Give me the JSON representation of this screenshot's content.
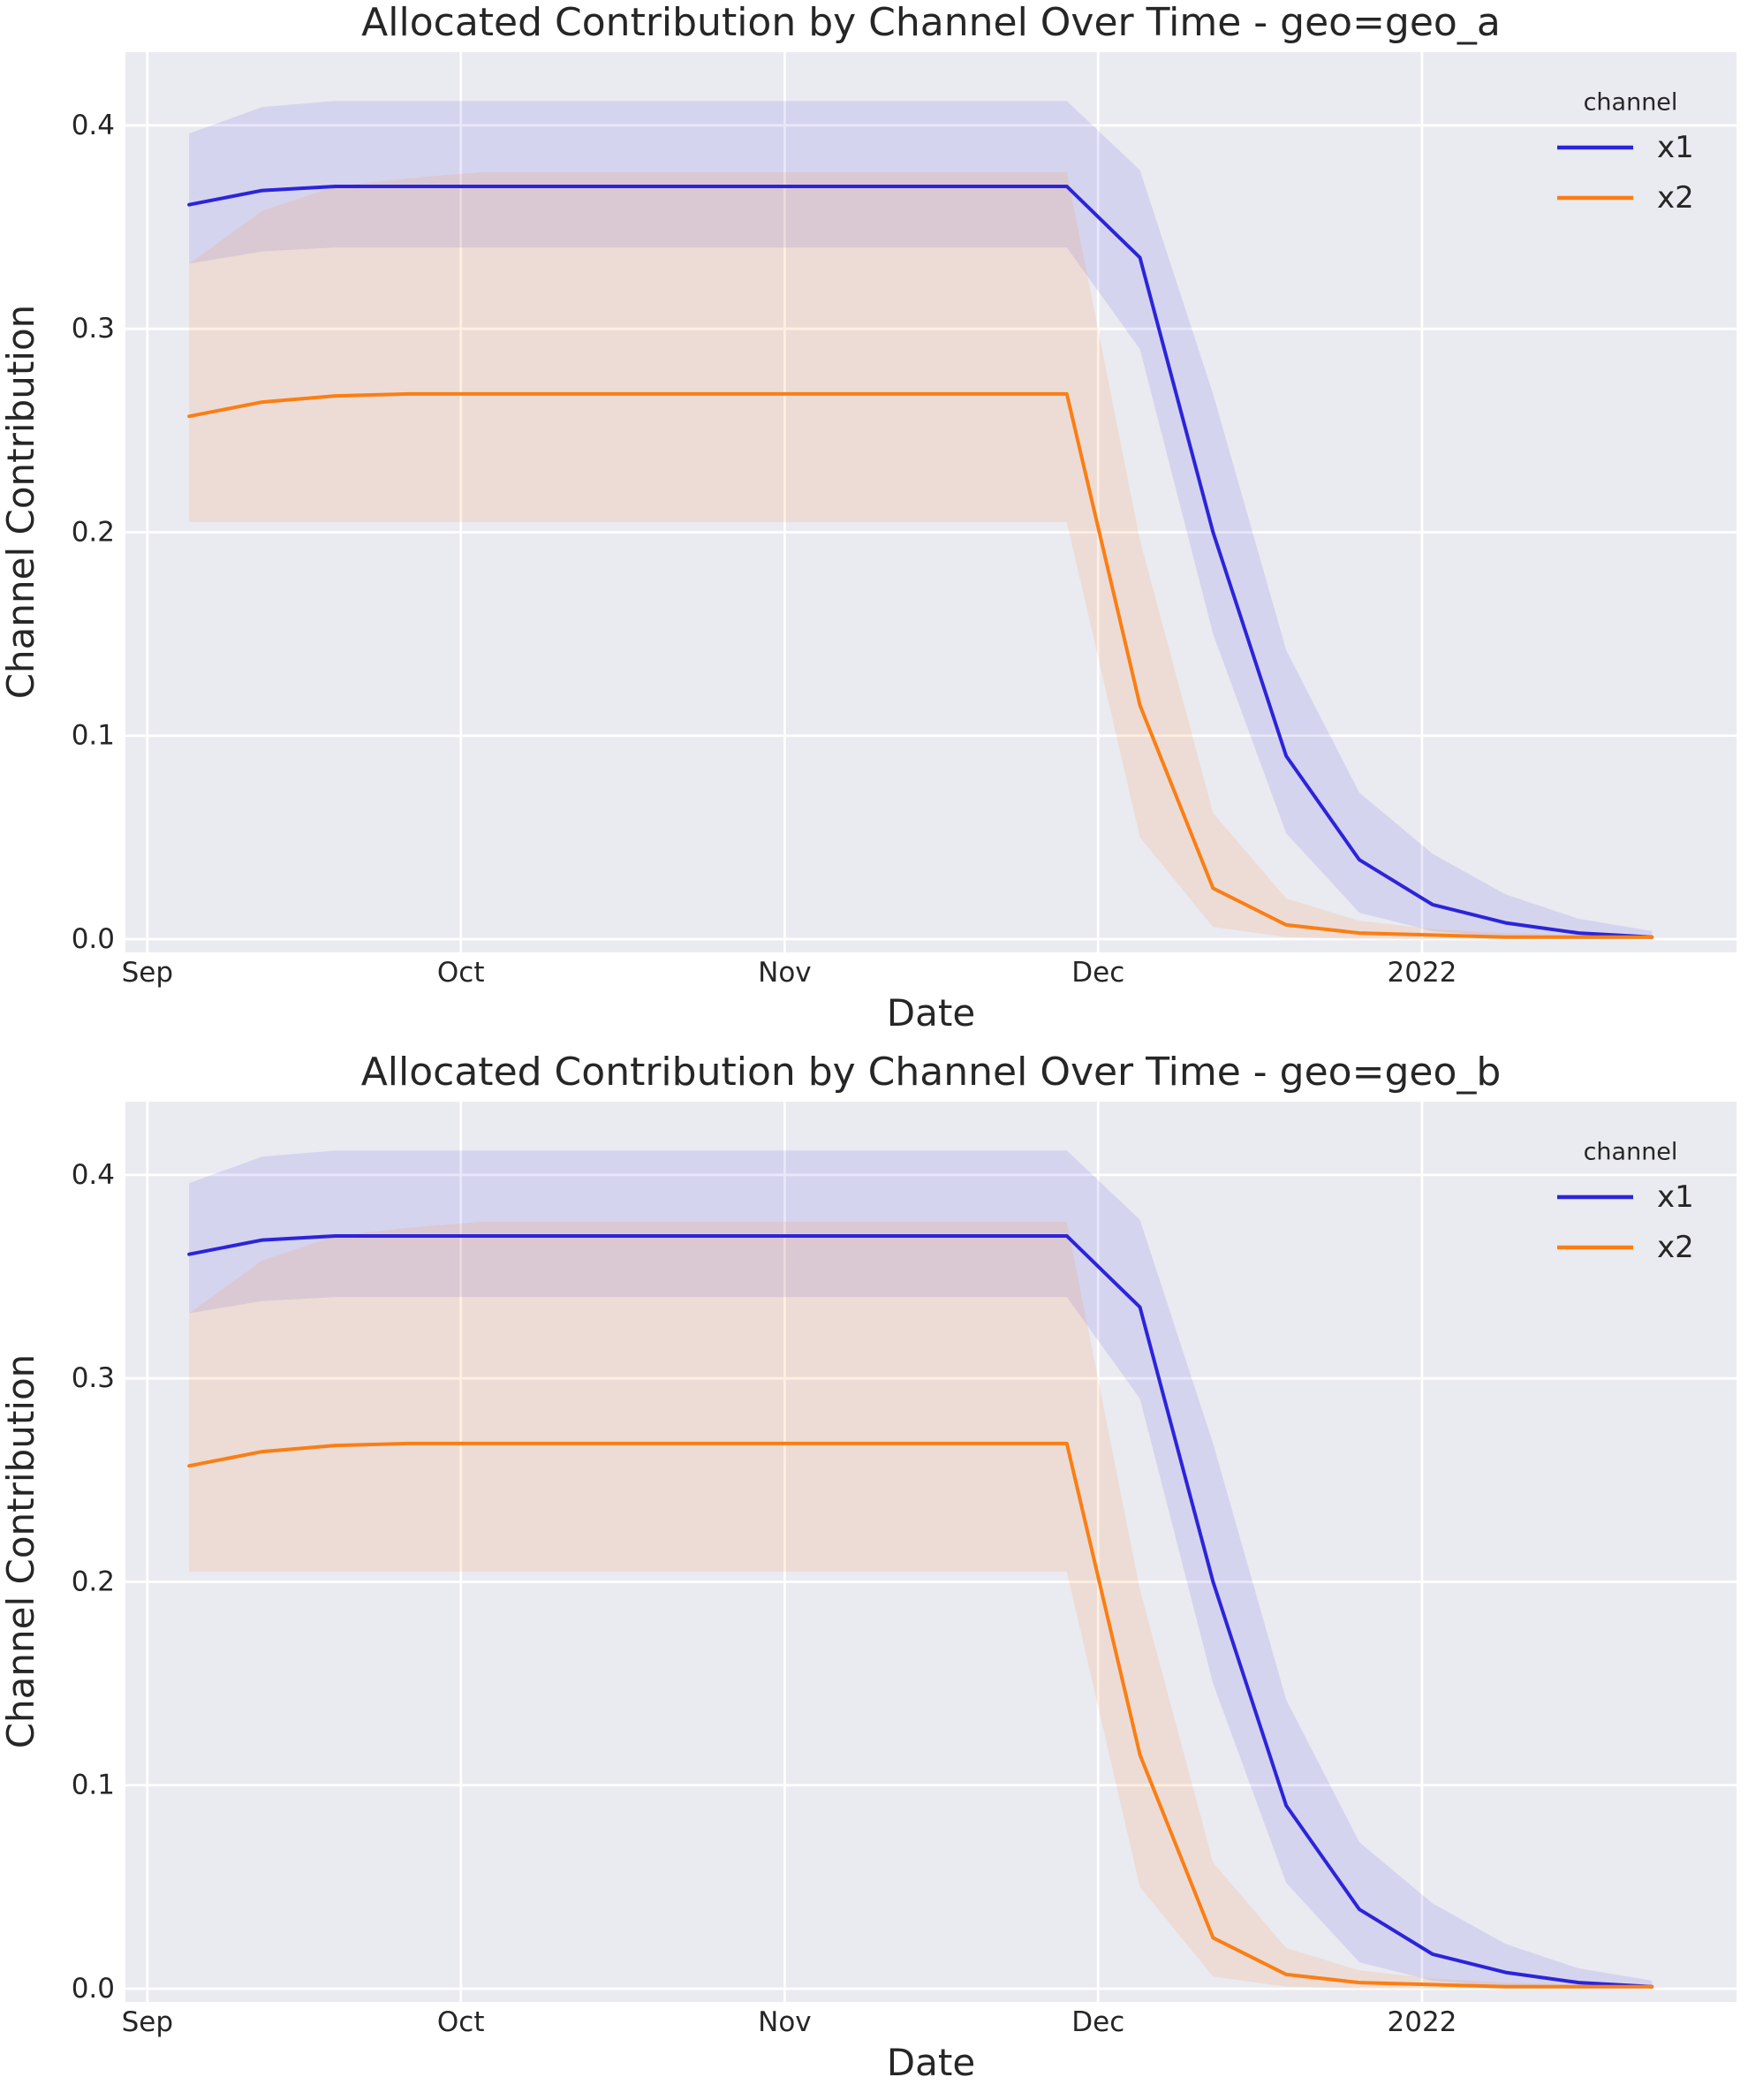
{
  "figure": {
    "background": "#ffffff",
    "plot_background": "#eaeaf1",
    "grid_color": "#ffffff",
    "text_color": "#262626"
  },
  "chart_data": [
    {
      "type": "line",
      "title": "Allocated Contribution by Channel Over Time - geo=geo_a",
      "xlabel": "Date",
      "ylabel": "Channel Contribution",
      "grid": true,
      "legend": {
        "title": "channel",
        "position": "upper right"
      },
      "x_axis_type": "date",
      "x_ticks": [
        {
          "label": "Sep",
          "date": "2021-09-01"
        },
        {
          "label": "Oct",
          "date": "2021-10-01"
        },
        {
          "label": "Nov",
          "date": "2021-11-01"
        },
        {
          "label": "Dec",
          "date": "2021-12-01"
        },
        {
          "label": "2022",
          "date": "2022-01-01"
        }
      ],
      "y_ticks": [
        0.0,
        0.1,
        0.2,
        0.3,
        0.4
      ],
      "y_tick_labels": [
        "0.0",
        "0.1",
        "0.2",
        "0.3",
        "0.4"
      ],
      "xlim_days": [
        -2.1,
        152.1
      ],
      "ylim": [
        -0.0065,
        0.436
      ],
      "x_dates": [
        "2021-09-05",
        "2021-09-12",
        "2021-09-19",
        "2021-09-26",
        "2021-10-03",
        "2021-10-10",
        "2021-10-17",
        "2021-10-24",
        "2021-10-31",
        "2021-11-07",
        "2021-11-14",
        "2021-11-21",
        "2021-11-28",
        "2021-12-05",
        "2021-12-12",
        "2021-12-19",
        "2021-12-26",
        "2022-01-02",
        "2022-01-09",
        "2022-01-16",
        "2022-01-23"
      ],
      "series": [
        {
          "name": "x1",
          "color": "#2c24da",
          "band_color": "rgba(44,36,218,0.11)",
          "values": [
            0.361,
            0.368,
            0.37,
            0.37,
            0.37,
            0.37,
            0.37,
            0.37,
            0.37,
            0.37,
            0.37,
            0.37,
            0.37,
            0.335,
            0.2,
            0.09,
            0.039,
            0.017,
            0.008,
            0.003,
            0.001
          ],
          "ci_lower": [
            0.332,
            0.338,
            0.34,
            0.34,
            0.34,
            0.34,
            0.34,
            0.34,
            0.34,
            0.34,
            0.34,
            0.34,
            0.34,
            0.29,
            0.15,
            0.052,
            0.013,
            0.004,
            0.001,
            0.0,
            0.0
          ],
          "ci_upper": [
            0.396,
            0.409,
            0.412,
            0.412,
            0.412,
            0.412,
            0.412,
            0.412,
            0.412,
            0.412,
            0.412,
            0.412,
            0.412,
            0.378,
            0.268,
            0.142,
            0.072,
            0.042,
            0.022,
            0.01,
            0.004
          ]
        },
        {
          "name": "x2",
          "color": "#fb7e14",
          "band_color": "rgba(251,126,20,0.12)",
          "values": [
            0.257,
            0.264,
            0.267,
            0.268,
            0.268,
            0.268,
            0.268,
            0.268,
            0.268,
            0.268,
            0.268,
            0.268,
            0.268,
            0.115,
            0.025,
            0.007,
            0.003,
            0.002,
            0.001,
            0.001,
            0.001
          ],
          "ci_lower": [
            0.205,
            0.205,
            0.205,
            0.205,
            0.205,
            0.205,
            0.205,
            0.205,
            0.205,
            0.205,
            0.205,
            0.205,
            0.205,
            0.05,
            0.006,
            0.001,
            0.0,
            0.0,
            0.0,
            0.0,
            0.0
          ],
          "ci_upper": [
            0.332,
            0.358,
            0.37,
            0.374,
            0.377,
            0.377,
            0.377,
            0.377,
            0.377,
            0.377,
            0.377,
            0.377,
            0.377,
            0.196,
            0.062,
            0.02,
            0.009,
            0.005,
            0.003,
            0.002,
            0.002
          ]
        }
      ]
    },
    {
      "type": "line",
      "title": "Allocated Contribution by Channel Over Time - geo=geo_b",
      "xlabel": "Date",
      "ylabel": "Channel Contribution",
      "grid": true,
      "legend": {
        "title": "channel",
        "position": "upper right"
      },
      "x_axis_type": "date",
      "x_ticks": [
        {
          "label": "Sep",
          "date": "2021-09-01"
        },
        {
          "label": "Oct",
          "date": "2021-10-01"
        },
        {
          "label": "Nov",
          "date": "2021-11-01"
        },
        {
          "label": "Dec",
          "date": "2021-12-01"
        },
        {
          "label": "2022",
          "date": "2022-01-01"
        }
      ],
      "y_ticks": [
        0.0,
        0.1,
        0.2,
        0.3,
        0.4
      ],
      "y_tick_labels": [
        "0.0",
        "0.1",
        "0.2",
        "0.3",
        "0.4"
      ],
      "xlim_days": [
        -2.1,
        152.1
      ],
      "ylim": [
        -0.0065,
        0.436
      ],
      "x_dates": [
        "2021-09-05",
        "2021-09-12",
        "2021-09-19",
        "2021-09-26",
        "2021-10-03",
        "2021-10-10",
        "2021-10-17",
        "2021-10-24",
        "2021-10-31",
        "2021-11-07",
        "2021-11-14",
        "2021-11-21",
        "2021-11-28",
        "2021-12-05",
        "2021-12-12",
        "2021-12-19",
        "2021-12-26",
        "2022-01-02",
        "2022-01-09",
        "2022-01-16",
        "2022-01-23"
      ],
      "series": [
        {
          "name": "x1",
          "color": "#2c24da",
          "band_color": "rgba(44,36,218,0.11)",
          "values": [
            0.361,
            0.368,
            0.37,
            0.37,
            0.37,
            0.37,
            0.37,
            0.37,
            0.37,
            0.37,
            0.37,
            0.37,
            0.37,
            0.335,
            0.2,
            0.09,
            0.039,
            0.017,
            0.008,
            0.003,
            0.001
          ],
          "ci_lower": [
            0.332,
            0.338,
            0.34,
            0.34,
            0.34,
            0.34,
            0.34,
            0.34,
            0.34,
            0.34,
            0.34,
            0.34,
            0.34,
            0.29,
            0.15,
            0.052,
            0.013,
            0.004,
            0.001,
            0.0,
            0.0
          ],
          "ci_upper": [
            0.396,
            0.409,
            0.412,
            0.412,
            0.412,
            0.412,
            0.412,
            0.412,
            0.412,
            0.412,
            0.412,
            0.412,
            0.412,
            0.378,
            0.268,
            0.142,
            0.072,
            0.042,
            0.022,
            0.01,
            0.004
          ]
        },
        {
          "name": "x2",
          "color": "#fb7e14",
          "band_color": "rgba(251,126,20,0.12)",
          "values": [
            0.257,
            0.264,
            0.267,
            0.268,
            0.268,
            0.268,
            0.268,
            0.268,
            0.268,
            0.268,
            0.268,
            0.268,
            0.268,
            0.115,
            0.025,
            0.007,
            0.003,
            0.002,
            0.001,
            0.001,
            0.001
          ],
          "ci_lower": [
            0.205,
            0.205,
            0.205,
            0.205,
            0.205,
            0.205,
            0.205,
            0.205,
            0.205,
            0.205,
            0.205,
            0.205,
            0.205,
            0.05,
            0.006,
            0.001,
            0.0,
            0.0,
            0.0,
            0.0,
            0.0
          ],
          "ci_upper": [
            0.332,
            0.358,
            0.37,
            0.374,
            0.377,
            0.377,
            0.377,
            0.377,
            0.377,
            0.377,
            0.377,
            0.377,
            0.377,
            0.196,
            0.062,
            0.02,
            0.009,
            0.005,
            0.003,
            0.002,
            0.002
          ]
        }
      ]
    }
  ]
}
